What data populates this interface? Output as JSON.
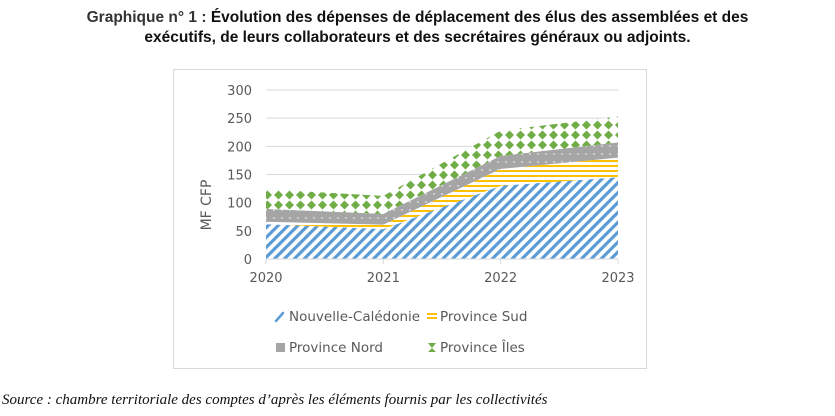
{
  "title": {
    "lead": "Graphique n° 1 :",
    "line1": "Évolution des dépenses de déplacement des élus des assemblées et des",
    "line2": "exécutifs, de leurs collaborateurs et des secrétaires généraux ou adjoints."
  },
  "source": "Source : chambre territoriale des comptes d’après les éléments fournis par les collectivités",
  "chart_data": {
    "type": "area",
    "stacked": true,
    "title": "Évolution des dépenses de déplacement des élus des assemblées et des exécutifs, de leurs collaborateurs et des secrétaires généraux ou adjoints",
    "xlabel": "",
    "ylabel": "MF CFP",
    "x": [
      "2020",
      "2021",
      "2022",
      "2023"
    ],
    "ylim": [
      0,
      300
    ],
    "yticks": [
      0,
      50,
      100,
      150,
      200,
      250,
      300
    ],
    "grid": true,
    "legend_position": "bottom",
    "series": [
      {
        "name": "Nouvelle-Calédonie",
        "values": [
          62,
          53,
          130,
          145
        ],
        "color": "#5b9bd5",
        "pattern": "diagonal-stripes"
      },
      {
        "name": "Province Sud",
        "values": [
          4,
          8,
          30,
          35
        ],
        "color": "#ffc000",
        "pattern": "horizontal-stripes"
      },
      {
        "name": "Province Nord",
        "values": [
          23,
          19,
          23,
          27
        ],
        "color": "#a5a5a5",
        "pattern": "dots"
      },
      {
        "name": "Province Îles",
        "values": [
          35,
          32,
          45,
          46
        ],
        "color": "#70ad47",
        "pattern": "diamonds"
      }
    ]
  }
}
